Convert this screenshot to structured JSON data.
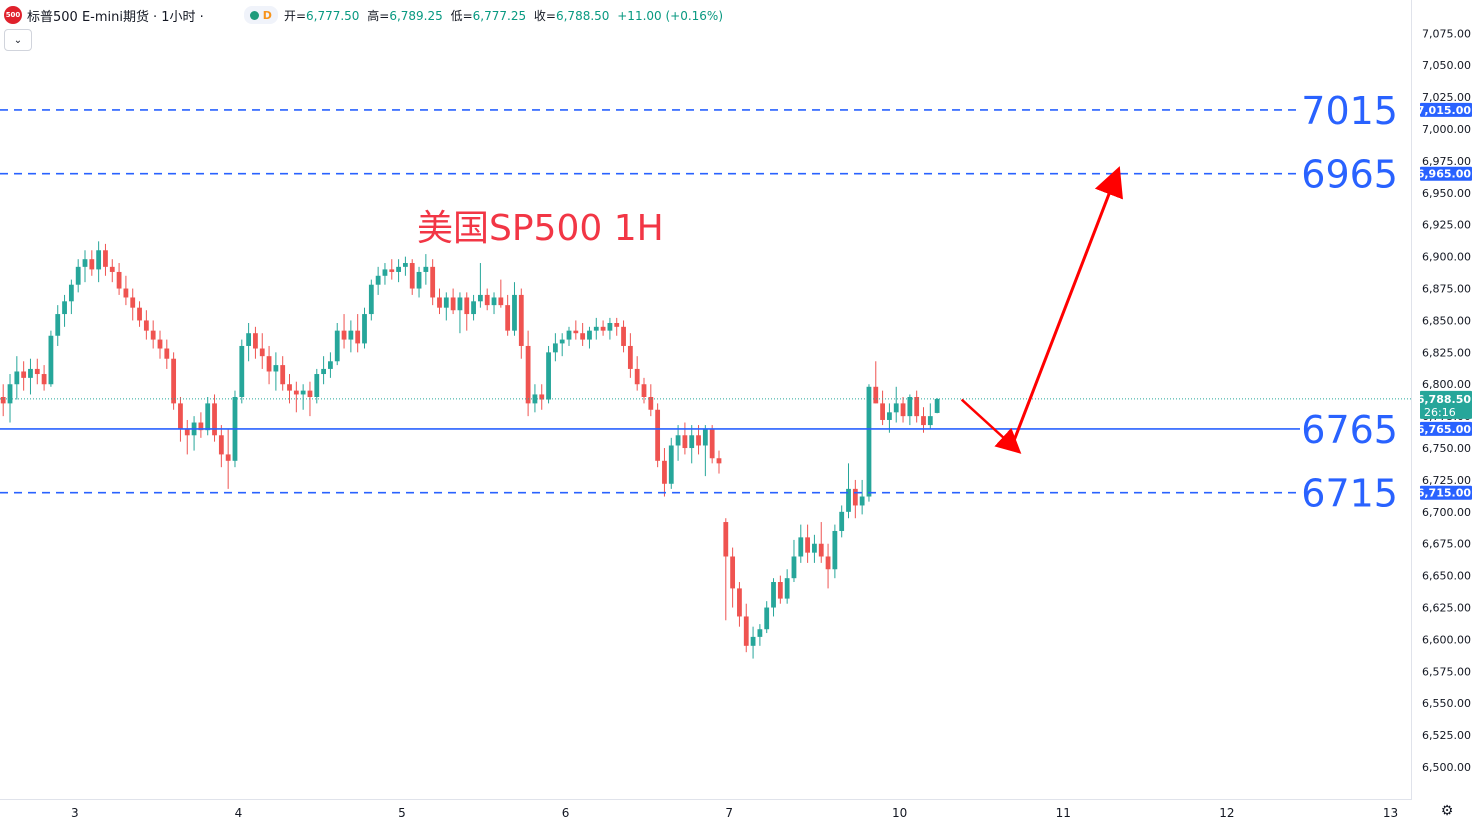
{
  "header": {
    "badge": "500",
    "symbol": "标普500 E-mini期货",
    "interval": "· 1小时 ·",
    "status_badge": "D",
    "open_label": "开=",
    "open": "6,777.50",
    "high_label": "高=",
    "high": "6,789.25",
    "low_label": "低=",
    "low": "6,777.25",
    "close_label": "收=",
    "close": "6,788.50",
    "change": "+11.00 (+0.16%)"
  },
  "colors": {
    "up": "#26a69a",
    "down": "#ef5350",
    "level": "#2962ff",
    "level_text": "#2962ff",
    "annotation": "#f23645",
    "arrow": "#ff0000",
    "axis_text": "#131722"
  },
  "chart_data": {
    "type": "candlestick",
    "title": "美国SP500 1H",
    "ylim": [
      6482,
      7098
    ],
    "y_ticks": [
      6500,
      6525,
      6550,
      6575,
      6600,
      6625,
      6650,
      6675,
      6700,
      6725,
      6750,
      6775,
      6800,
      6825,
      6850,
      6875,
      6900,
      6925,
      6950,
      6975,
      7000,
      7025,
      7050,
      7075,
      7100
    ],
    "x_ticks": [
      {
        "label": "3",
        "bar": 10.5
      },
      {
        "label": "4",
        "bar": 34.5
      },
      {
        "label": "5",
        "bar": 58.5
      },
      {
        "label": "6",
        "bar": 82.5
      },
      {
        "label": "7",
        "bar": 106.5
      },
      {
        "label": "10",
        "bar": 131.5
      },
      {
        "label": "11",
        "bar": 155.5
      },
      {
        "label": "12",
        "bar": 179.5
      },
      {
        "label": "13",
        "bar": 203.5
      }
    ],
    "candles": [
      [
        6790,
        6800,
        6775,
        6785
      ],
      [
        6785,
        6808,
        6770,
        6800
      ],
      [
        6800,
        6822,
        6788,
        6810
      ],
      [
        6810,
        6818,
        6795,
        6805
      ],
      [
        6805,
        6820,
        6792,
        6812
      ],
      [
        6812,
        6820,
        6800,
        6808
      ],
      [
        6808,
        6815,
        6795,
        6800
      ],
      [
        6800,
        6842,
        6798,
        6838
      ],
      [
        6838,
        6862,
        6830,
        6855
      ],
      [
        6855,
        6870,
        6845,
        6865
      ],
      [
        6865,
        6882,
        6855,
        6878
      ],
      [
        6878,
        6898,
        6872,
        6892
      ],
      [
        6892,
        6905,
        6880,
        6898
      ],
      [
        6898,
        6905,
        6885,
        6890
      ],
      [
        6890,
        6912,
        6880,
        6905
      ],
      [
        6905,
        6910,
        6885,
        6892
      ],
      [
        6892,
        6898,
        6880,
        6888
      ],
      [
        6888,
        6895,
        6870,
        6875
      ],
      [
        6875,
        6885,
        6862,
        6868
      ],
      [
        6868,
        6875,
        6850,
        6860
      ],
      [
        6860,
        6865,
        6845,
        6850
      ],
      [
        6850,
        6858,
        6835,
        6842
      ],
      [
        6842,
        6850,
        6828,
        6835
      ],
      [
        6835,
        6842,
        6820,
        6828
      ],
      [
        6828,
        6835,
        6812,
        6820
      ],
      [
        6820,
        6825,
        6780,
        6785
      ],
      [
        6785,
        6790,
        6755,
        6765
      ],
      [
        6765,
        6772,
        6745,
        6760
      ],
      [
        6760,
        6775,
        6748,
        6770
      ],
      [
        6770,
        6778,
        6758,
        6764
      ],
      [
        6764,
        6790,
        6760,
        6785
      ],
      [
        6785,
        6792,
        6755,
        6760
      ],
      [
        6760,
        6768,
        6735,
        6745
      ],
      [
        6745,
        6765,
        6718,
        6740
      ],
      [
        6740,
        6795,
        6735,
        6790
      ],
      [
        6790,
        6835,
        6785,
        6830
      ],
      [
        6830,
        6848,
        6818,
        6840
      ],
      [
        6840,
        6845,
        6820,
        6828
      ],
      [
        6828,
        6840,
        6812,
        6822
      ],
      [
        6822,
        6830,
        6800,
        6810
      ],
      [
        6810,
        6825,
        6795,
        6815
      ],
      [
        6815,
        6822,
        6795,
        6800
      ],
      [
        6800,
        6808,
        6785,
        6795
      ],
      [
        6795,
        6802,
        6778,
        6792
      ],
      [
        6792,
        6800,
        6780,
        6795
      ],
      [
        6795,
        6802,
        6775,
        6790
      ],
      [
        6790,
        6812,
        6785,
        6808
      ],
      [
        6808,
        6822,
        6800,
        6812
      ],
      [
        6812,
        6825,
        6805,
        6818
      ],
      [
        6818,
        6848,
        6815,
        6842
      ],
      [
        6842,
        6855,
        6828,
        6835
      ],
      [
        6835,
        6850,
        6825,
        6842
      ],
      [
        6842,
        6855,
        6825,
        6832
      ],
      [
        6832,
        6860,
        6828,
        6855
      ],
      [
        6855,
        6882,
        6850,
        6878
      ],
      [
        6878,
        6892,
        6870,
        6885
      ],
      [
        6885,
        6895,
        6878,
        6890
      ],
      [
        6890,
        6898,
        6882,
        6888
      ],
      [
        6888,
        6898,
        6880,
        6892
      ],
      [
        6892,
        6900,
        6885,
        6895
      ],
      [
        6895,
        6898,
        6870,
        6875
      ],
      [
        6875,
        6892,
        6868,
        6888
      ],
      [
        6888,
        6902,
        6878,
        6892
      ],
      [
        6892,
        6898,
        6862,
        6868
      ],
      [
        6868,
        6875,
        6855,
        6860
      ],
      [
        6860,
        6872,
        6850,
        6868
      ],
      [
        6868,
        6875,
        6855,
        6858
      ],
      [
        6858,
        6872,
        6840,
        6868
      ],
      [
        6868,
        6872,
        6842,
        6855
      ],
      [
        6855,
        6870,
        6850,
        6865
      ],
      [
        6865,
        6895,
        6860,
        6870
      ],
      [
        6870,
        6875,
        6858,
        6862
      ],
      [
        6862,
        6872,
        6855,
        6868
      ],
      [
        6868,
        6882,
        6860,
        6862
      ],
      [
        6862,
        6870,
        6838,
        6842
      ],
      [
        6842,
        6880,
        6838,
        6870
      ],
      [
        6870,
        6875,
        6820,
        6830
      ],
      [
        6830,
        6842,
        6775,
        6785
      ],
      [
        6785,
        6800,
        6778,
        6792
      ],
      [
        6792,
        6800,
        6780,
        6788
      ],
      [
        6788,
        6830,
        6785,
        6825
      ],
      [
        6825,
        6840,
        6818,
        6832
      ],
      [
        6832,
        6840,
        6822,
        6835
      ],
      [
        6835,
        6845,
        6830,
        6842
      ],
      [
        6842,
        6850,
        6835,
        6840
      ],
      [
        6840,
        6848,
        6830,
        6835
      ],
      [
        6835,
        6845,
        6828,
        6842
      ],
      [
        6842,
        6852,
        6835,
        6845
      ],
      [
        6845,
        6850,
        6838,
        6842
      ],
      [
        6842,
        6852,
        6835,
        6848
      ],
      [
        6848,
        6852,
        6838,
        6845
      ],
      [
        6845,
        6850,
        6825,
        6830
      ],
      [
        6830,
        6840,
        6805,
        6812
      ],
      [
        6812,
        6822,
        6795,
        6800
      ],
      [
        6800,
        6805,
        6785,
        6790
      ],
      [
        6790,
        6800,
        6775,
        6780
      ],
      [
        6780,
        6785,
        6735,
        6740
      ],
      [
        6740,
        6750,
        6712,
        6722
      ],
      [
        6722,
        6758,
        6718,
        6752
      ],
      [
        6752,
        6768,
        6740,
        6760
      ],
      [
        6760,
        6770,
        6745,
        6750
      ],
      [
        6750,
        6768,
        6738,
        6760
      ],
      [
        6760,
        6768,
        6745,
        6752
      ],
      [
        6752,
        6768,
        6728,
        6765
      ],
      [
        6765,
        6768,
        6738,
        6742
      ],
      [
        6742,
        6748,
        6730,
        6738
      ],
      [
        6692,
        6695,
        6615,
        6665
      ],
      [
        6665,
        6672,
        6625,
        6640
      ],
      [
        6640,
        6645,
        6610,
        6618
      ],
      [
        6618,
        6628,
        6590,
        6595
      ],
      [
        6595,
        6610,
        6585,
        6602
      ],
      [
        6602,
        6612,
        6595,
        6608
      ],
      [
        6608,
        6630,
        6605,
        6625
      ],
      [
        6625,
        6648,
        6618,
        6645
      ],
      [
        6645,
        6650,
        6628,
        6632
      ],
      [
        6632,
        6655,
        6628,
        6648
      ],
      [
        6648,
        6678,
        6645,
        6665
      ],
      [
        6665,
        6690,
        6660,
        6680
      ],
      [
        6680,
        6690,
        6660,
        6668
      ],
      [
        6668,
        6682,
        6660,
        6675
      ],
      [
        6675,
        6692,
        6660,
        6665
      ],
      [
        6665,
        6675,
        6640,
        6655
      ],
      [
        6655,
        6690,
        6648,
        6685
      ],
      [
        6685,
        6705,
        6680,
        6700
      ],
      [
        6700,
        6738,
        6695,
        6718
      ],
      [
        6718,
        6725,
        6695,
        6705
      ],
      [
        6705,
        6725,
        6698,
        6712
      ],
      [
        6712,
        6800,
        6708,
        6798
      ],
      [
        6798,
        6818,
        6785,
        6785
      ],
      [
        6785,
        6795,
        6768,
        6772
      ],
      [
        6772,
        6785,
        6762,
        6778
      ],
      [
        6778,
        6798,
        6770,
        6785
      ],
      [
        6785,
        6790,
        6770,
        6775
      ],
      [
        6775,
        6792,
        6768,
        6790
      ],
      [
        6790,
        6795,
        6770,
        6775
      ],
      [
        6775,
        6782,
        6762,
        6768
      ],
      [
        6768,
        6785,
        6765,
        6775
      ],
      [
        6777.5,
        6789.25,
        6777.25,
        6788.5
      ]
    ],
    "gap_after_bar": 113,
    "last_price": 6788.5,
    "countdown": "26:16",
    "levels": [
      {
        "value": 7015,
        "label": "7015",
        "axis_label": "7,015.00",
        "style": "dashed"
      },
      {
        "value": 6965,
        "label": "6965",
        "axis_label": "6,965.00",
        "style": "dashed"
      },
      {
        "value": 6765,
        "label": "6765",
        "axis_label": "6,765.00",
        "style": "solid"
      },
      {
        "value": 6715,
        "label": "6715",
        "axis_label": "6,715.00",
        "style": "dashed"
      }
    ],
    "last_price_label": "6,788.50",
    "arrow_path": [
      {
        "bar": 140.6,
        "price": 6788
      },
      {
        "bar": 148.0,
        "price": 6752
      },
      {
        "bar": 163.0,
        "price": 6960
      }
    ]
  }
}
